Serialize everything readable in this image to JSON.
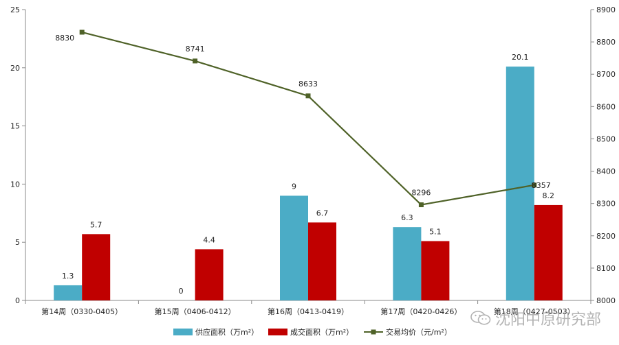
{
  "chart_data": {
    "type": "bar",
    "categories": [
      "第14周（0330-0405）",
      "第15周（0406-0412）",
      "第16周（0413-0419）",
      "第17周（0420-0426）",
      "第18周（0427-0503）"
    ],
    "series": [
      {
        "name": "供应面积（万m²）",
        "type": "bar",
        "axis": "left",
        "color": "#4bacc6",
        "values": [
          1.3,
          0,
          9,
          6.3,
          20.1
        ]
      },
      {
        "name": "成交面积（万m²）",
        "type": "bar",
        "axis": "left",
        "color": "#c00000",
        "values": [
          5.7,
          4.4,
          6.7,
          5.1,
          8.2
        ]
      },
      {
        "name": "交易均价（元/m²）",
        "type": "line",
        "axis": "right",
        "color": "#4f6228",
        "values": [
          8830,
          8741,
          8633,
          8296,
          8357
        ]
      }
    ],
    "left_axis": {
      "min": 0,
      "max": 25,
      "step": 5
    },
    "right_axis": {
      "min": 8000,
      "max": 8900,
      "step": 100
    },
    "grid": false,
    "legend_position": "bottom"
  },
  "watermark": {
    "text": "沈阳中原研究部",
    "icon": "wechat-icon"
  }
}
